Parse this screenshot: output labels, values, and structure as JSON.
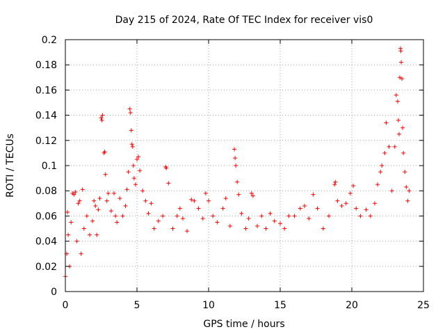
{
  "chart_data": {
    "type": "scatter",
    "title": "Day 215 of 2024, Rate Of TEC Index for receiver vis0",
    "xlabel": "GPS time / hours",
    "ylabel": "ROTI / TECUs",
    "xlim": [
      0,
      25
    ],
    "ylim": [
      0,
      0.2
    ],
    "x_ticks": [
      0,
      5,
      10,
      15,
      20,
      25
    ],
    "x_tick_labels": [
      "0",
      "5",
      "10",
      "15",
      "20",
      "25"
    ],
    "y_ticks": [
      0,
      0.02,
      0.04,
      0.06,
      0.08,
      0.1,
      0.12,
      0.14,
      0.16,
      0.18,
      0.2
    ],
    "y_tick_labels": [
      "0",
      "0.02",
      "0.04",
      "0.06",
      "0.08",
      "0.1",
      "0.12",
      "0.14",
      "0.16",
      "0.18",
      "0.2"
    ],
    "grid": true,
    "marker": "+",
    "series": [
      {
        "name": "ROTI",
        "color": "#ff0000",
        "points": [
          [
            0.0,
            0.012
          ],
          [
            0.1,
            0.03
          ],
          [
            0.15,
            0.063
          ],
          [
            0.2,
            0.045
          ],
          [
            0.3,
            0.02
          ],
          [
            0.4,
            0.055
          ],
          [
            0.5,
            0.078
          ],
          [
            0.6,
            0.077
          ],
          [
            0.7,
            0.079
          ],
          [
            0.8,
            0.04
          ],
          [
            0.9,
            0.07
          ],
          [
            1.0,
            0.072
          ],
          [
            1.1,
            0.03
          ],
          [
            1.2,
            0.081
          ],
          [
            1.3,
            0.05
          ],
          [
            1.5,
            0.06
          ],
          [
            1.7,
            0.045
          ],
          [
            1.9,
            0.056
          ],
          [
            2.0,
            0.072
          ],
          [
            2.1,
            0.068
          ],
          [
            2.2,
            0.045
          ],
          [
            2.3,
            0.065
          ],
          [
            2.4,
            0.074
          ],
          [
            2.5,
            0.138
          ],
          [
            2.55,
            0.136
          ],
          [
            2.6,
            0.14
          ],
          [
            2.7,
            0.11
          ],
          [
            2.75,
            0.111
          ],
          [
            2.8,
            0.093
          ],
          [
            2.9,
            0.072
          ],
          [
            3.0,
            0.078
          ],
          [
            3.2,
            0.064
          ],
          [
            3.4,
            0.078
          ],
          [
            3.5,
            0.06
          ],
          [
            3.6,
            0.055
          ],
          [
            3.8,
            0.074
          ],
          [
            4.0,
            0.06
          ],
          [
            4.2,
            0.068
          ],
          [
            4.3,
            0.081
          ],
          [
            4.4,
            0.095
          ],
          [
            4.5,
            0.145
          ],
          [
            4.55,
            0.142
          ],
          [
            4.6,
            0.128
          ],
          [
            4.65,
            0.117
          ],
          [
            4.7,
            0.115
          ],
          [
            4.75,
            0.1
          ],
          [
            4.8,
            0.09
          ],
          [
            4.9,
            0.085
          ],
          [
            5.0,
            0.105
          ],
          [
            5.1,
            0.107
          ],
          [
            5.2,
            0.096
          ],
          [
            5.4,
            0.08
          ],
          [
            5.6,
            0.072
          ],
          [
            5.8,
            0.062
          ],
          [
            6.0,
            0.07
          ],
          [
            6.2,
            0.05
          ],
          [
            6.5,
            0.056
          ],
          [
            6.8,
            0.06
          ],
          [
            7.0,
            0.099
          ],
          [
            7.05,
            0.098
          ],
          [
            7.2,
            0.086
          ],
          [
            7.5,
            0.05
          ],
          [
            7.8,
            0.06
          ],
          [
            8.0,
            0.066
          ],
          [
            8.2,
            0.058
          ],
          [
            8.5,
            0.048
          ],
          [
            8.8,
            0.073
          ],
          [
            9.0,
            0.072
          ],
          [
            9.3,
            0.066
          ],
          [
            9.6,
            0.058
          ],
          [
            9.8,
            0.078
          ],
          [
            10.0,
            0.072
          ],
          [
            10.3,
            0.06
          ],
          [
            10.6,
            0.055
          ],
          [
            11.0,
            0.066
          ],
          [
            11.2,
            0.074
          ],
          [
            11.5,
            0.052
          ],
          [
            11.8,
            0.113
          ],
          [
            11.85,
            0.106
          ],
          [
            11.9,
            0.1
          ],
          [
            12.0,
            0.087
          ],
          [
            12.1,
            0.077
          ],
          [
            12.3,
            0.062
          ],
          [
            12.6,
            0.05
          ],
          [
            12.8,
            0.058
          ],
          [
            13.0,
            0.078
          ],
          [
            13.1,
            0.076
          ],
          [
            13.4,
            0.052
          ],
          [
            13.7,
            0.06
          ],
          [
            14.0,
            0.05
          ],
          [
            14.3,
            0.062
          ],
          [
            14.6,
            0.056
          ],
          [
            15.0,
            0.054
          ],
          [
            15.3,
            0.05
          ],
          [
            15.6,
            0.06
          ],
          [
            16.0,
            0.06
          ],
          [
            16.4,
            0.066
          ],
          [
            16.7,
            0.068
          ],
          [
            17.0,
            0.058
          ],
          [
            17.3,
            0.077
          ],
          [
            17.6,
            0.066
          ],
          [
            18.0,
            0.05
          ],
          [
            18.4,
            0.06
          ],
          [
            18.8,
            0.085
          ],
          [
            18.85,
            0.087
          ],
          [
            19.0,
            0.072
          ],
          [
            19.3,
            0.068
          ],
          [
            19.6,
            0.07
          ],
          [
            19.9,
            0.078
          ],
          [
            20.1,
            0.084
          ],
          [
            20.3,
            0.066
          ],
          [
            20.6,
            0.06
          ],
          [
            21.0,
            0.065
          ],
          [
            21.3,
            0.06
          ],
          [
            21.6,
            0.07
          ],
          [
            21.8,
            0.085
          ],
          [
            22.0,
            0.095
          ],
          [
            22.1,
            0.1
          ],
          [
            22.3,
            0.11
          ],
          [
            22.4,
            0.134
          ],
          [
            22.6,
            0.115
          ],
          [
            22.8,
            0.08
          ],
          [
            23.0,
            0.115
          ],
          [
            23.1,
            0.156
          ],
          [
            23.2,
            0.151
          ],
          [
            23.25,
            0.136
          ],
          [
            23.3,
            0.125
          ],
          [
            23.35,
            0.17
          ],
          [
            23.4,
            0.193
          ],
          [
            23.42,
            0.191
          ],
          [
            23.45,
            0.182
          ],
          [
            23.5,
            0.169
          ],
          [
            23.55,
            0.13
          ],
          [
            23.6,
            0.11
          ],
          [
            23.7,
            0.095
          ],
          [
            23.8,
            0.083
          ],
          [
            23.9,
            0.072
          ],
          [
            24.0,
            0.08
          ]
        ]
      }
    ]
  }
}
